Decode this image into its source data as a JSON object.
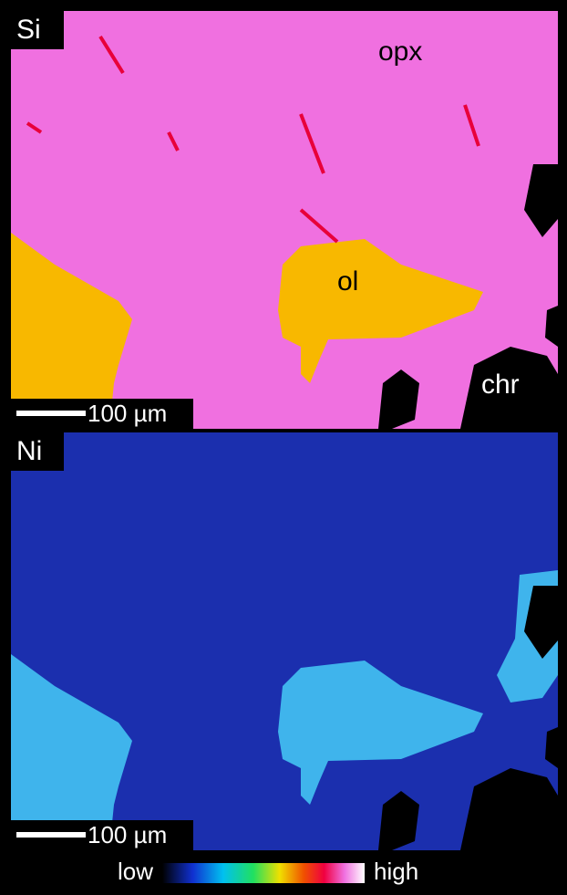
{
  "panels": [
    {
      "element": "Si",
      "scale_bar": "100 µm",
      "labels": [
        "opx",
        "ol",
        "chr"
      ]
    },
    {
      "element": "Ni",
      "scale_bar": "100 µm"
    }
  ],
  "colorbar": {
    "low": "low",
    "high": "high"
  }
}
